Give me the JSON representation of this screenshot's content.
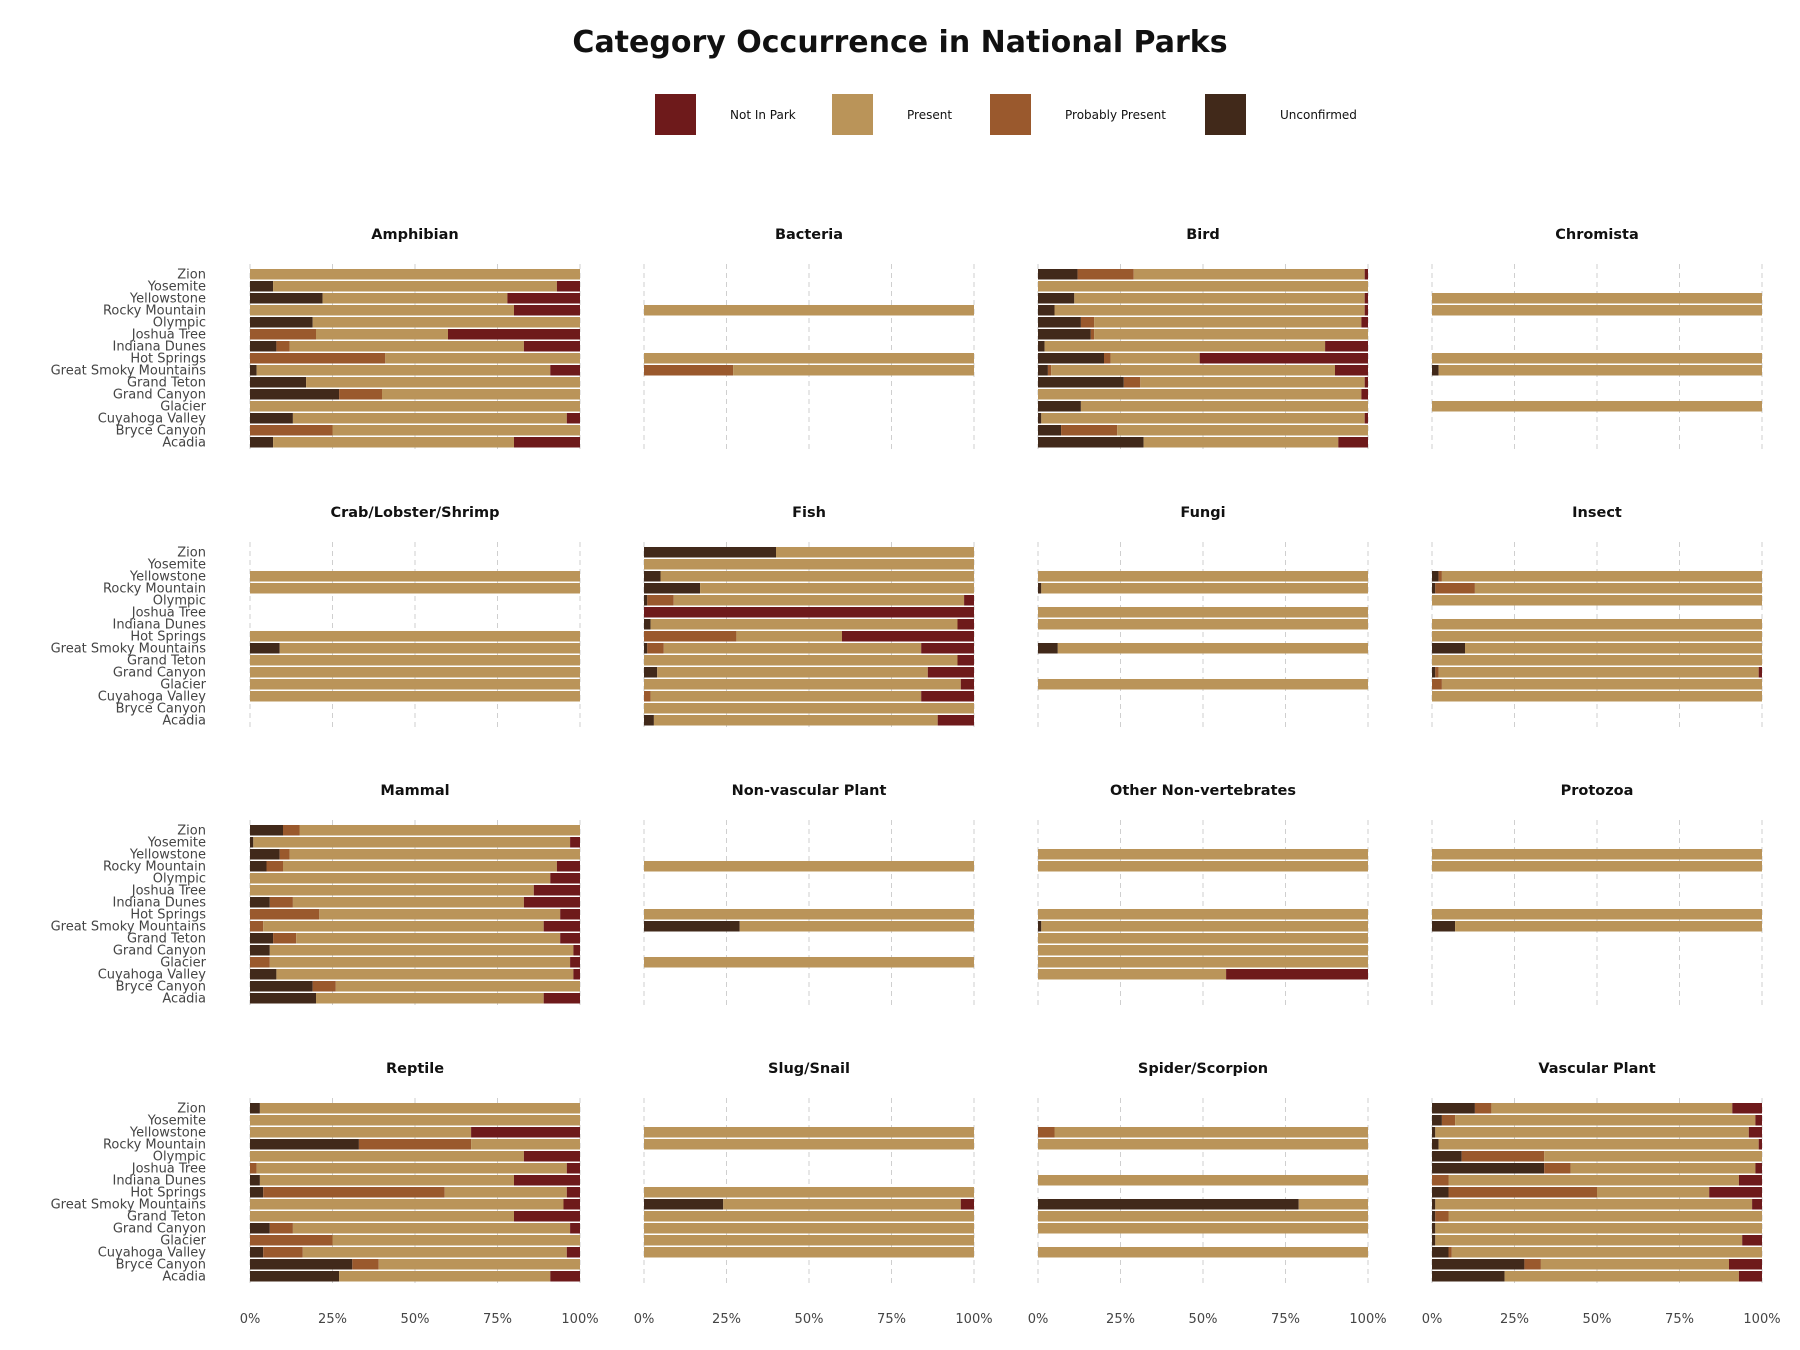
{
  "chart_data": {
    "type": "bar",
    "orientation": "horizontal",
    "stacked": "percent",
    "title": "Category Occurrence in National Parks",
    "legend": {
      "placement": "top",
      "entries": [
        "Not In Park",
        "Present",
        "Probably Present",
        "Unconfirmed"
      ]
    },
    "colors": {
      "Not In Park": "#6e1a1b",
      "Present": "#ba9459",
      "Probably Present": "#9a592d",
      "Unconfirmed": "#41291a"
    },
    "stack_order": [
      "Unconfirmed",
      "Probably Present",
      "Present",
      "Not In Park"
    ],
    "parks": [
      "Zion",
      "Yosemite",
      "Yellowstone",
      "Rocky Mountain",
      "Olympic",
      "Joshua Tree",
      "Indiana Dunes",
      "Hot Springs",
      "Great Smoky Mountains",
      "Grand Teton",
      "Grand Canyon",
      "Glacier",
      "Cuyahoga Valley",
      "Bryce Canyon",
      "Acadia"
    ],
    "x_ticks": [
      "0%",
      "25%",
      "50%",
      "75%",
      "100%"
    ],
    "xlim": [
      0,
      1
    ],
    "grid": "vertical dashed",
    "panels": [
      {
        "title": "Amphibian",
        "bars": {
          "Zion": [
            0,
            0,
            1.0,
            0
          ],
          "Yosemite": [
            0.07,
            0,
            0.86,
            0.07
          ],
          "Yellowstone": [
            0.22,
            0,
            0.56,
            0.22
          ],
          "Rocky Mountain": [
            0,
            0,
            0.8,
            0.2
          ],
          "Olympic": [
            0.19,
            0,
            0.81,
            0
          ],
          "Joshua Tree": [
            0,
            0.2,
            0.4,
            0.4
          ],
          "Indiana Dunes": [
            0.08,
            0.04,
            0.71,
            0.17
          ],
          "Hot Springs": [
            0,
            0.41,
            0.59,
            0
          ],
          "Great Smoky Mountains": [
            0.02,
            0,
            0.89,
            0.09
          ],
          "Grand Teton": [
            0.17,
            0,
            0.83,
            0
          ],
          "Grand Canyon": [
            0.27,
            0.13,
            0.6,
            0
          ],
          "Glacier": [
            0,
            0,
            1.0,
            0
          ],
          "Cuyahoga Valley": [
            0.13,
            0,
            0.83,
            0.04
          ],
          "Bryce Canyon": [
            0,
            0.25,
            0.75,
            0
          ],
          "Acadia": [
            0.07,
            0,
            0.73,
            0.2
          ]
        }
      },
      {
        "title": "Bacteria",
        "bars": {
          "Rocky Mountain": [
            0,
            0,
            1.0,
            0
          ],
          "Hot Springs": [
            0,
            0,
            1.0,
            0
          ],
          "Great Smoky Mountains": [
            0,
            0.27,
            0.73,
            0
          ]
        }
      },
      {
        "title": "Bird",
        "bars": {
          "Zion": [
            0.12,
            0.17,
            0.7,
            0.01
          ],
          "Yosemite": [
            0,
            0,
            1.0,
            0
          ],
          "Yellowstone": [
            0.11,
            0,
            0.88,
            0.01
          ],
          "Rocky Mountain": [
            0.05,
            0,
            0.94,
            0.01
          ],
          "Olympic": [
            0.13,
            0.04,
            0.81,
            0.02
          ],
          "Joshua Tree": [
            0.16,
            0.01,
            0.83,
            0
          ],
          "Indiana Dunes": [
            0.02,
            0,
            0.85,
            0.13
          ],
          "Hot Springs": [
            0.2,
            0.02,
            0.27,
            0.51
          ],
          "Great Smoky Mountains": [
            0.03,
            0.01,
            0.86,
            0.1
          ],
          "Grand Teton": [
            0.26,
            0.05,
            0.68,
            0.01
          ],
          "Grand Canyon": [
            0,
            0,
            0.98,
            0.02
          ],
          "Glacier": [
            0.13,
            0,
            0.87,
            0
          ],
          "Cuyahoga Valley": [
            0.01,
            0,
            0.98,
            0.01
          ],
          "Bryce Canyon": [
            0.07,
            0.17,
            0.76,
            0
          ],
          "Acadia": [
            0.32,
            0,
            0.59,
            0.09
          ]
        }
      },
      {
        "title": "Chromista",
        "bars": {
          "Yellowstone": [
            0,
            0,
            1.0,
            0
          ],
          "Rocky Mountain": [
            0,
            0,
            1.0,
            0
          ],
          "Hot Springs": [
            0,
            0,
            1.0,
            0
          ],
          "Great Smoky Mountains": [
            0.02,
            0,
            0.98,
            0
          ],
          "Glacier": [
            0,
            0,
            1.0,
            0
          ]
        }
      },
      {
        "title": "Crab/Lobster/Shrimp",
        "bars": {
          "Yellowstone": [
            0,
            0,
            1.0,
            0
          ],
          "Rocky Mountain": [
            0,
            0,
            1.0,
            0
          ],
          "Hot Springs": [
            0,
            0,
            1.0,
            0
          ],
          "Great Smoky Mountains": [
            0.09,
            0,
            0.91,
            0
          ],
          "Grand Teton": [
            0,
            0,
            1.0,
            0
          ],
          "Grand Canyon": [
            0,
            0,
            1.0,
            0
          ],
          "Glacier": [
            0,
            0,
            1.0,
            0
          ],
          "Cuyahoga Valley": [
            0,
            0,
            1.0,
            0
          ]
        }
      },
      {
        "title": "Fish",
        "bars": {
          "Zion": [
            0.4,
            0,
            0.6,
            0
          ],
          "Yosemite": [
            0,
            0,
            1.0,
            0
          ],
          "Yellowstone": [
            0.05,
            0,
            0.95,
            0
          ],
          "Rocky Mountain": [
            0.17,
            0,
            0.83,
            0
          ],
          "Olympic": [
            0.01,
            0.08,
            0.88,
            0.03
          ],
          "Joshua Tree": [
            0,
            0,
            0,
            1.0
          ],
          "Indiana Dunes": [
            0.02,
            0,
            0.93,
            0.05
          ],
          "Hot Springs": [
            0,
            0.28,
            0.32,
            0.4
          ],
          "Great Smoky Mountains": [
            0.01,
            0.05,
            0.78,
            0.16
          ],
          "Grand Teton": [
            0,
            0,
            0.95,
            0.05
          ],
          "Grand Canyon": [
            0.04,
            0,
            0.82,
            0.14
          ],
          "Glacier": [
            0,
            0,
            0.96,
            0.04
          ],
          "Cuyahoga Valley": [
            0,
            0.02,
            0.82,
            0.16
          ],
          "Bryce Canyon": [
            0,
            0,
            1.0,
            0
          ],
          "Acadia": [
            0.03,
            0,
            0.86,
            0.11
          ]
        }
      },
      {
        "title": "Fungi",
        "bars": {
          "Yellowstone": [
            0,
            0,
            1.0,
            0
          ],
          "Rocky Mountain": [
            0.01,
            0,
            0.99,
            0
          ],
          "Joshua Tree": [
            0,
            0,
            1.0,
            0
          ],
          "Indiana Dunes": [
            0,
            0,
            1.0,
            0
          ],
          "Great Smoky Mountains": [
            0.06,
            0,
            0.94,
            0
          ],
          "Glacier": [
            0,
            0,
            1.0,
            0
          ]
        }
      },
      {
        "title": "Insect",
        "bars": {
          "Yellowstone": [
            0.02,
            0.01,
            0.97,
            0
          ],
          "Rocky Mountain": [
            0.01,
            0.12,
            0.87,
            0
          ],
          "Olympic": [
            0,
            0,
            1.0,
            0
          ],
          "Indiana Dunes": [
            0,
            0,
            1.0,
            0
          ],
          "Hot Springs": [
            0,
            0,
            1.0,
            0
          ],
          "Great Smoky Mountains": [
            0.1,
            0,
            0.9,
            0
          ],
          "Grand Teton": [
            0,
            0,
            1.0,
            0
          ],
          "Grand Canyon": [
            0.01,
            0.01,
            0.97,
            0.01
          ],
          "Glacier": [
            0,
            0.03,
            0.97,
            0
          ],
          "Cuyahoga Valley": [
            0,
            0,
            1.0,
            0
          ]
        }
      },
      {
        "title": "Mammal",
        "bars": {
          "Zion": [
            0.1,
            0.05,
            0.85,
            0
          ],
          "Yosemite": [
            0.01,
            0,
            0.96,
            0.03
          ],
          "Yellowstone": [
            0.09,
            0.03,
            0.88,
            0
          ],
          "Rocky Mountain": [
            0.05,
            0.05,
            0.83,
            0.07
          ],
          "Olympic": [
            0,
            0,
            0.91,
            0.09
          ],
          "Joshua Tree": [
            0,
            0,
            0.86,
            0.14
          ],
          "Indiana Dunes": [
            0.06,
            0.07,
            0.7,
            0.17
          ],
          "Hot Springs": [
            0,
            0.21,
            0.73,
            0.06
          ],
          "Great Smoky Mountains": [
            0,
            0.04,
            0.85,
            0.11
          ],
          "Grand Teton": [
            0.07,
            0.07,
            0.8,
            0.06
          ],
          "Grand Canyon": [
            0.06,
            0,
            0.92,
            0.02
          ],
          "Glacier": [
            0,
            0.06,
            0.91,
            0.03
          ],
          "Cuyahoga Valley": [
            0.08,
            0,
            0.9,
            0.02
          ],
          "Bryce Canyon": [
            0.19,
            0.07,
            0.74,
            0
          ],
          "Acadia": [
            0.2,
            0,
            0.69,
            0.11
          ]
        }
      },
      {
        "title": "Non-vascular Plant",
        "bars": {
          "Rocky Mountain": [
            0,
            0,
            1.0,
            0
          ],
          "Hot Springs": [
            0,
            0,
            1.0,
            0
          ],
          "Great Smoky Mountains": [
            0.29,
            0,
            0.71,
            0
          ],
          "Glacier": [
            0,
            0,
            1.0,
            0
          ]
        }
      },
      {
        "title": "Other Non-vertebrates",
        "bars": {
          "Yellowstone": [
            0,
            0,
            1.0,
            0
          ],
          "Rocky Mountain": [
            0,
            0,
            1.0,
            0
          ],
          "Hot Springs": [
            0,
            0,
            1.0,
            0
          ],
          "Great Smoky Mountains": [
            0.01,
            0,
            0.99,
            0
          ],
          "Grand Teton": [
            0,
            0,
            1.0,
            0
          ],
          "Grand Canyon": [
            0,
            0,
            1.0,
            0
          ],
          "Glacier": [
            0,
            0,
            1.0,
            0
          ],
          "Cuyahoga Valley": [
            0,
            0,
            0.57,
            0.43
          ]
        }
      },
      {
        "title": "Protozoa",
        "bars": {
          "Yellowstone": [
            0,
            0,
            1.0,
            0
          ],
          "Rocky Mountain": [
            0,
            0,
            1.0,
            0
          ],
          "Hot Springs": [
            0,
            0,
            1.0,
            0
          ],
          "Great Smoky Mountains": [
            0.07,
            0,
            0.93,
            0
          ]
        }
      },
      {
        "title": "Reptile",
        "bars": {
          "Zion": [
            0.03,
            0,
            0.97,
            0
          ],
          "Yosemite": [
            0,
            0,
            1.0,
            0
          ],
          "Yellowstone": [
            0,
            0,
            0.67,
            0.33
          ],
          "Rocky Mountain": [
            0.33,
            0.34,
            0.33,
            0
          ],
          "Olympic": [
            0,
            0,
            0.83,
            0.17
          ],
          "Joshua Tree": [
            0,
            0.02,
            0.94,
            0.04
          ],
          "Indiana Dunes": [
            0.03,
            0,
            0.77,
            0.2
          ],
          "Hot Springs": [
            0.04,
            0.55,
            0.37,
            0.04
          ],
          "Great Smoky Mountains": [
            0,
            0,
            0.95,
            0.05
          ],
          "Grand Teton": [
            0,
            0,
            0.8,
            0.2
          ],
          "Grand Canyon": [
            0.06,
            0.07,
            0.84,
            0.03
          ],
          "Glacier": [
            0,
            0.25,
            0.75,
            0
          ],
          "Cuyahoga Valley": [
            0.04,
            0.12,
            0.8,
            0.04
          ],
          "Bryce Canyon": [
            0.31,
            0.08,
            0.61,
            0
          ],
          "Acadia": [
            0.27,
            0,
            0.64,
            0.09
          ]
        }
      },
      {
        "title": "Slug/Snail",
        "bars": {
          "Yellowstone": [
            0,
            0,
            1.0,
            0
          ],
          "Rocky Mountain": [
            0,
            0,
            1.0,
            0
          ],
          "Hot Springs": [
            0,
            0,
            1.0,
            0
          ],
          "Great Smoky Mountains": [
            0.24,
            0,
            0.72,
            0.04
          ],
          "Grand Teton": [
            0,
            0,
            1.0,
            0
          ],
          "Grand Canyon": [
            0,
            0,
            1.0,
            0
          ],
          "Glacier": [
            0,
            0,
            1.0,
            0
          ],
          "Cuyahoga Valley": [
            0,
            0,
            1.0,
            0
          ]
        }
      },
      {
        "title": "Spider/Scorpion",
        "bars": {
          "Yellowstone": [
            0,
            0.05,
            0.95,
            0
          ],
          "Rocky Mountain": [
            0,
            0,
            1.0,
            0
          ],
          "Indiana Dunes": [
            0,
            0,
            1.0,
            0
          ],
          "Great Smoky Mountains": [
            0.79,
            0,
            0.21,
            0
          ],
          "Grand Teton": [
            0,
            0,
            1.0,
            0
          ],
          "Grand Canyon": [
            0,
            0,
            1.0,
            0
          ],
          "Cuyahoga Valley": [
            0,
            0,
            1.0,
            0
          ]
        }
      },
      {
        "title": "Vascular Plant",
        "bars": {
          "Zion": [
            0.13,
            0.05,
            0.73,
            0.09
          ],
          "Yosemite": [
            0.03,
            0.04,
            0.91,
            0.02
          ],
          "Yellowstone": [
            0.01,
            0,
            0.95,
            0.04
          ],
          "Rocky Mountain": [
            0.02,
            0,
            0.97,
            0.01
          ],
          "Olympic": [
            0.09,
            0.25,
            0.66,
            0
          ],
          "Joshua Tree": [
            0.34,
            0.08,
            0.56,
            0.02
          ],
          "Indiana Dunes": [
            0,
            0.05,
            0.88,
            0.07
          ],
          "Hot Springs": [
            0.05,
            0.45,
            0.34,
            0.16
          ],
          "Great Smoky Mountains": [
            0.01,
            0,
            0.96,
            0.03
          ],
          "Grand Teton": [
            0.01,
            0.04,
            0.95,
            0
          ],
          "Grand Canyon": [
            0.01,
            0,
            0.99,
            0
          ],
          "Glacier": [
            0.01,
            0,
            0.93,
            0.06
          ],
          "Cuyahoga Valley": [
            0.05,
            0.01,
            0.94,
            0
          ],
          "Bryce Canyon": [
            0.28,
            0.05,
            0.57,
            0.1
          ],
          "Acadia": [
            0.22,
            0,
            0.71,
            0.07
          ]
        }
      }
    ]
  }
}
